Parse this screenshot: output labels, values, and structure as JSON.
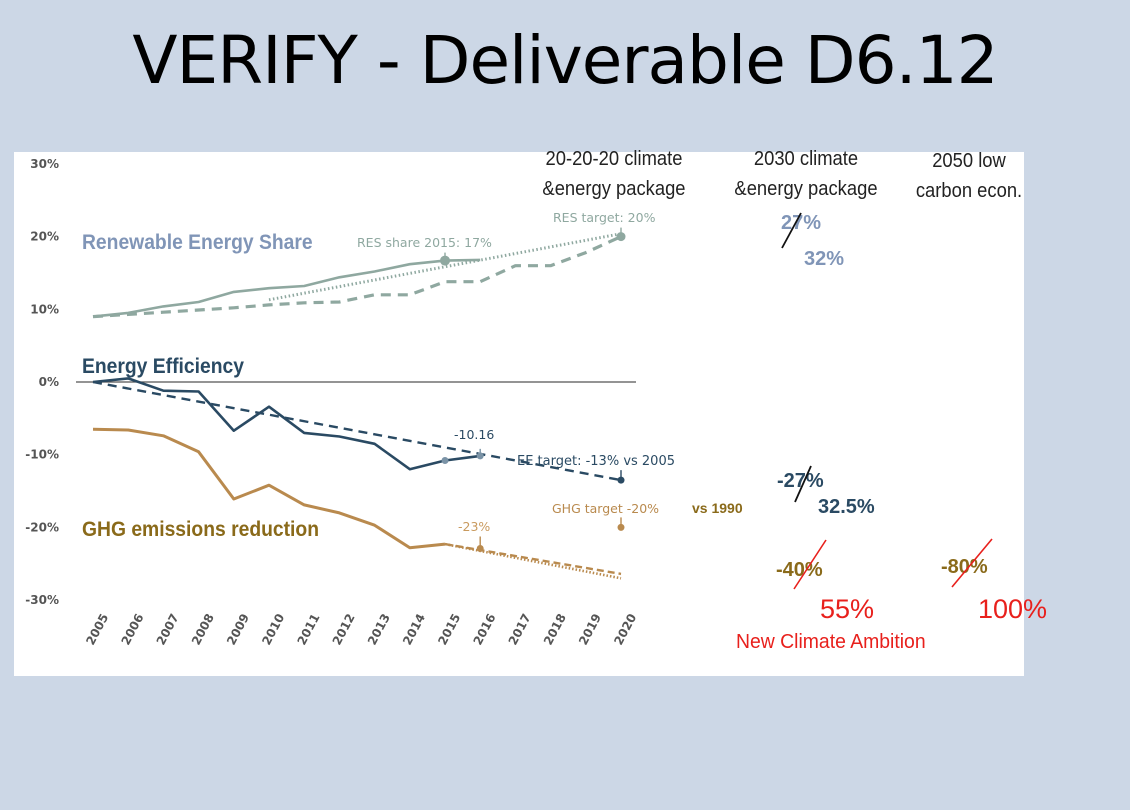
{
  "slide": {
    "title": "VERIFY - Deliverable D6.12"
  },
  "colors": {
    "res": "#8fa8a0",
    "res_label": "#8095b7",
    "ee": "#2a4a63",
    "ghg": "#b98a4e",
    "ghg_label": "#8a6a1a",
    "red": "#e8201c"
  },
  "chart_data": {
    "type": "line",
    "x": [
      2005,
      2006,
      2007,
      2008,
      2009,
      2010,
      2011,
      2012,
      2013,
      2014,
      2015,
      2016,
      2017,
      2018,
      2019,
      2020
    ],
    "ylim": [
      -30,
      30
    ],
    "yticks": [
      "30%",
      "20%",
      "10%",
      "0%",
      "-10%",
      "-20%",
      "-30%"
    ],
    "grid": false,
    "series": [
      {
        "name": "Renewable Energy Share",
        "key": "res_actual",
        "style": "solid",
        "points": [
          [
            2005,
            9
          ],
          [
            2006,
            9.5
          ],
          [
            2007,
            10.4
          ],
          [
            2008,
            11
          ],
          [
            2009,
            12.4
          ],
          [
            2010,
            12.9
          ],
          [
            2011,
            13.2
          ],
          [
            2012,
            14.4
          ],
          [
            2013,
            15.2
          ],
          [
            2014,
            16.2
          ],
          [
            2015,
            16.7
          ],
          [
            2016,
            16.8
          ]
        ]
      },
      {
        "key": "res_trajectory",
        "style": "dashed",
        "points": [
          [
            2005,
            9
          ],
          [
            2006,
            9.3
          ],
          [
            2007,
            9.6
          ],
          [
            2008,
            9.9
          ],
          [
            2009,
            10.2
          ],
          [
            2010,
            10.6
          ],
          [
            2011,
            10.9
          ],
          [
            2012,
            11
          ],
          [
            2013,
            12
          ],
          [
            2014,
            12
          ],
          [
            2015,
            13.8
          ],
          [
            2016,
            13.8
          ],
          [
            2017,
            16
          ],
          [
            2018,
            16
          ],
          [
            2019,
            17.8
          ],
          [
            2020,
            20
          ]
        ]
      },
      {
        "key": "res_projection",
        "style": "dotted",
        "points": [
          [
            2010,
            11.3
          ],
          [
            2020,
            20.4
          ]
        ]
      },
      {
        "name": "Energy Efficiency",
        "key": "ee_actual",
        "style": "solid",
        "points": [
          [
            2005,
            0
          ],
          [
            2006,
            0.5
          ],
          [
            2007,
            -1.2
          ],
          [
            2008,
            -1.3
          ],
          [
            2009,
            -6.7
          ],
          [
            2010,
            -3.4
          ],
          [
            2011,
            -7
          ],
          [
            2012,
            -7.5
          ],
          [
            2013,
            -8.5
          ],
          [
            2014,
            -12
          ],
          [
            2015,
            -10.8
          ],
          [
            2016,
            -10.16
          ]
        ]
      },
      {
        "key": "ee_trajectory",
        "style": "dashed",
        "points": [
          [
            2005,
            0
          ],
          [
            2020,
            -13.5
          ]
        ]
      },
      {
        "name": "GHG emissions reduction",
        "key": "ghg_actual",
        "style": "solid",
        "points": [
          [
            2005,
            -6.5
          ],
          [
            2006,
            -6.6
          ],
          [
            2007,
            -7.4
          ],
          [
            2008,
            -9.6
          ],
          [
            2009,
            -16.1
          ],
          [
            2010,
            -14.2
          ],
          [
            2011,
            -16.9
          ],
          [
            2012,
            -18
          ],
          [
            2013,
            -19.7
          ],
          [
            2014,
            -22.8
          ],
          [
            2015,
            -22.3
          ]
        ]
      },
      {
        "key": "ghg_projection_a",
        "style": "dashed",
        "points": [
          [
            2015,
            -22.3
          ],
          [
            2020,
            -26.4
          ]
        ]
      },
      {
        "key": "ghg_projection_b",
        "style": "dotted",
        "points": [
          [
            2015,
            -22.3
          ],
          [
            2020,
            -27
          ]
        ]
      }
    ],
    "markers": [
      {
        "key": "res_2015",
        "x": 2015,
        "y": 16.7
      },
      {
        "key": "res_target",
        "x": 2020,
        "y": 20
      },
      {
        "key": "ee_2015",
        "x": 2015,
        "y": -10.8
      },
      {
        "key": "ee_2016",
        "x": 2016,
        "y": -10.16
      },
      {
        "key": "ee_target",
        "x": 2020,
        "y": -13.5
      },
      {
        "key": "ghg_2016",
        "x": 2016,
        "y": -22.9
      },
      {
        "key": "ghg_target",
        "x": 2020,
        "y": -20
      }
    ],
    "labels": {
      "res": "Renewable Energy Share",
      "res_2015": "RES share 2015: 17%",
      "res_target": "RES target: 20%",
      "ee": "Energy Efficiency",
      "ee_value": "-10.16",
      "ee_target": "EE target: -13% vs 2005",
      "ghg": "GHG emissions reduction",
      "ghg_value": "-23%",
      "ghg_target": "GHG target -20%",
      "ghg_vs": "vs 1990"
    },
    "packages": [
      {
        "line1": "20-20-20 climate",
        "line2": "&energy package"
      },
      {
        "line1": "2030 climate",
        "line2": "&energy package"
      },
      {
        "line1": "2050 low",
        "line2": "carbon econ."
      }
    ],
    "targets_2030": {
      "res_old": "27%",
      "res_new": "32%",
      "ee_old": "-27%",
      "ee_new": "32.5%",
      "ghg_old": "-40%",
      "ghg_new": "55%"
    },
    "targets_2050": {
      "ghg_old": "-80%",
      "ghg_new": "100%"
    },
    "new_ambition": "New Climate Ambition"
  }
}
